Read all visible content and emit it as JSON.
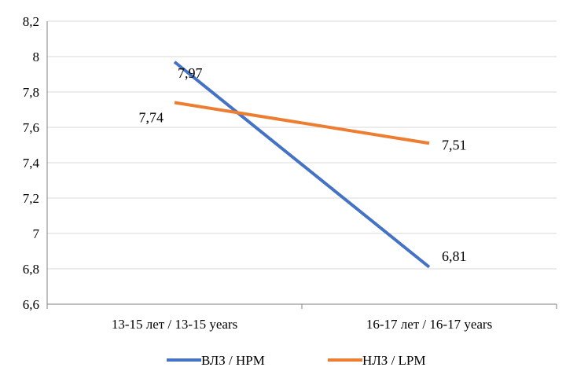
{
  "chart_data": {
    "type": "line",
    "categories": [
      "13-15 лет / 13-15 years",
      "16-17 лет / 16-17 years"
    ],
    "series": [
      {
        "name": "ВЛЗ / HPM",
        "values": [
          7.97,
          6.81
        ],
        "labels": [
          "7,97",
          "6,81"
        ],
        "color": "#4472C4"
      },
      {
        "name": "НЛЗ / LPM",
        "values": [
          7.74,
          7.51
        ],
        "labels": [
          "7,74",
          "7,51"
        ],
        "color": "#ED7D31"
      }
    ],
    "ylim": [
      6.6,
      8.2
    ],
    "yticks": [
      6.6,
      6.8,
      7,
      7.2,
      7.4,
      7.6,
      7.8,
      8,
      8.2
    ],
    "ytick_labels": [
      "6,6",
      "6,8",
      "7",
      "7,2",
      "7,4",
      "7,6",
      "7,8",
      "8",
      "8,2"
    ],
    "grid": true,
    "legend": "bottom",
    "title": "",
    "xlabel": "",
    "ylabel": ""
  }
}
